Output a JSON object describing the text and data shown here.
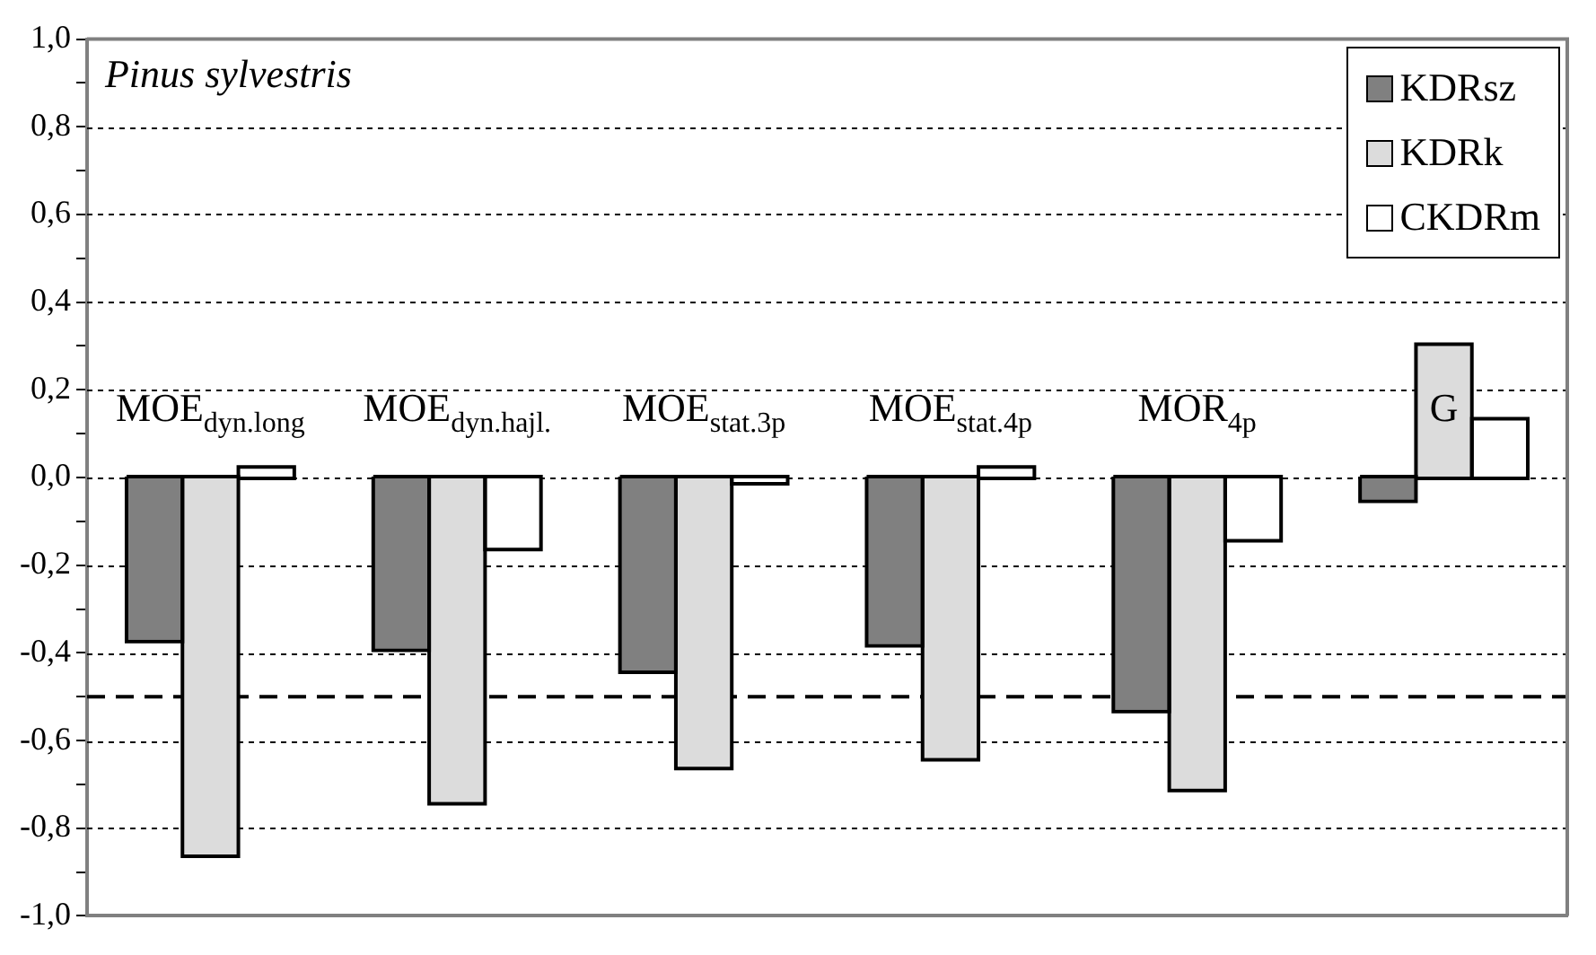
{
  "chart_data": {
    "type": "bar",
    "title": "Pinus sylvestris",
    "categories": [
      "MOE$_{dyn.long}$",
      "MOE$_{dyn.hajl.}$",
      "MOE$_{stat.3p}$",
      "MOE$_{stat.4p}$",
      "MOR$_{4p}$",
      "G"
    ],
    "series": [
      {
        "name": "KDRsz",
        "color": "#808080",
        "values": [
          -0.37,
          -0.39,
          -0.44,
          -0.38,
          -0.53,
          -0.05
        ]
      },
      {
        "name": "KDRk",
        "color": "#dcdcdc",
        "values": [
          -0.86,
          -0.74,
          -0.66,
          -0.64,
          -0.71,
          0.3
        ]
      },
      {
        "name": "CKDRm",
        "color": "#ffffff",
        "values": [
          0.02,
          -0.16,
          -0.01,
          0.02,
          -0.14,
          0.13
        ]
      }
    ],
    "ylim": [
      -1,
      1
    ],
    "yticks": [
      {
        "value": -1,
        "label": "-1,0"
      },
      {
        "value": -0.9,
        "label": null
      },
      {
        "value": -0.8,
        "label": "-0,8"
      },
      {
        "value": -0.7,
        "label": null
      },
      {
        "value": -0.6,
        "label": "-0,6"
      },
      {
        "value": -0.5,
        "label": null
      },
      {
        "value": -0.4,
        "label": "-0,4"
      },
      {
        "value": -0.3,
        "label": null
      },
      {
        "value": -0.2,
        "label": "-0,2"
      },
      {
        "value": -0.1,
        "label": null
      },
      {
        "value": 0,
        "label": "0,0"
      },
      {
        "value": 0.1,
        "label": null
      },
      {
        "value": 0.2,
        "label": "0,2"
      },
      {
        "value": 0.3,
        "label": null
      },
      {
        "value": 0.4,
        "label": "0,4"
      },
      {
        "value": 0.5,
        "label": null
      },
      {
        "value": 0.6,
        "label": "0,6"
      },
      {
        "value": 0.7,
        "label": null
      },
      {
        "value": 0.8,
        "label": "0,8"
      },
      {
        "value": 0.9,
        "label": null
      },
      {
        "value": 1,
        "label": "1,0"
      }
    ],
    "ref_lines": [
      {
        "axis": "y",
        "value": -0.5,
        "line_style": "dashed",
        "color": "#000000"
      }
    ],
    "grid": "y",
    "legend": "top right",
    "tick_labels": "y"
  }
}
